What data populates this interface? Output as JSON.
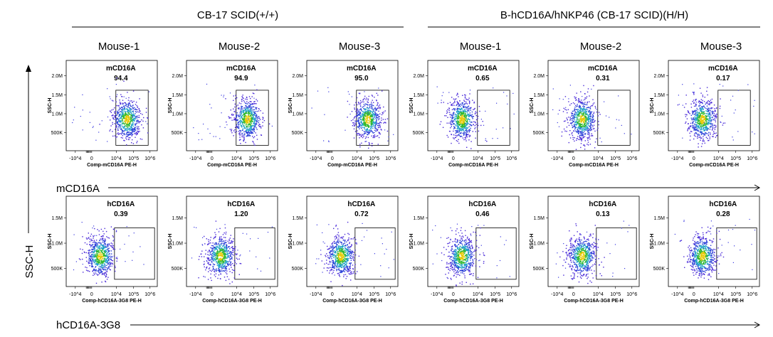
{
  "groups": [
    {
      "label": "CB-17 SCID(+/+)"
    },
    {
      "label": "B-hCD16A/hNKP46 (CB-17 SCID)(H/H)"
    }
  ],
  "columns": [
    "Mouse-1",
    "Mouse-2",
    "Mouse-3",
    "Mouse-1",
    "Mouse-2",
    "Mouse-3"
  ],
  "row_axis_labels": [
    "mCD16A",
    "hCD16A-3G8"
  ],
  "y_axis_big_label": "SSC-H",
  "chart_data": [
    {
      "type": "scatter",
      "row": "mCD16A",
      "x_label": "Comp-mCD16A PE-H",
      "y_label": "SSC-H",
      "x_ticks": [
        "-10^4",
        "0",
        "10^4",
        "10^5",
        "10^6"
      ],
      "y_ticks": [
        "500K",
        "1.0M",
        "1.5M",
        "2.0M"
      ],
      "gate_name": "mCD16A",
      "panels": [
        {
          "column": "Mouse-1",
          "group": "CB-17 SCID(+/+)",
          "gate_value": "94.4",
          "positive": true
        },
        {
          "column": "Mouse-2",
          "group": "CB-17 SCID(+/+)",
          "gate_value": "94.9",
          "positive": true
        },
        {
          "column": "Mouse-3",
          "group": "CB-17 SCID(+/+)",
          "gate_value": "95.0",
          "positive": true
        },
        {
          "column": "Mouse-1",
          "group": "B-hCD16A/hNKP46 (CB-17 SCID)(H/H)",
          "gate_value": "0.65",
          "positive": false
        },
        {
          "column": "Mouse-2",
          "group": "B-hCD16A/hNKP46 (CB-17 SCID)(H/H)",
          "gate_value": "0.31",
          "positive": false
        },
        {
          "column": "Mouse-3",
          "group": "B-hCD16A/hNKP46 (CB-17 SCID)(H/H)",
          "gate_value": "0.17",
          "positive": false
        }
      ]
    },
    {
      "type": "scatter",
      "row": "hCD16A-3G8",
      "x_label": "Comp-hCD16A-3G8 PE-H",
      "y_label": "SSC-H",
      "x_ticks": [
        "-10^4",
        "0",
        "10^4",
        "10^5",
        "10^6"
      ],
      "y_ticks": [
        "500K",
        "1.0M",
        "1.5M"
      ],
      "gate_name": "hCD16A",
      "panels": [
        {
          "column": "Mouse-1",
          "group": "CB-17 SCID(+/+)",
          "gate_value": "0.39",
          "positive": false
        },
        {
          "column": "Mouse-2",
          "group": "CB-17 SCID(+/+)",
          "gate_value": "1.20",
          "positive": false
        },
        {
          "column": "Mouse-3",
          "group": "CB-17 SCID(+/+)",
          "gate_value": "0.72",
          "positive": false
        },
        {
          "column": "Mouse-1",
          "group": "B-hCD16A/hNKP46 (CB-17 SCID)(H/H)",
          "gate_value": "0.46",
          "positive": false
        },
        {
          "column": "Mouse-2",
          "group": "B-hCD16A/hNKP46 (CB-17 SCID)(H/H)",
          "gate_value": "0.13",
          "positive": false
        },
        {
          "column": "Mouse-3",
          "group": "B-hCD16A/hNKP46 (CB-17 SCID)(H/H)",
          "gate_value": "0.28",
          "positive": false
        }
      ]
    }
  ]
}
